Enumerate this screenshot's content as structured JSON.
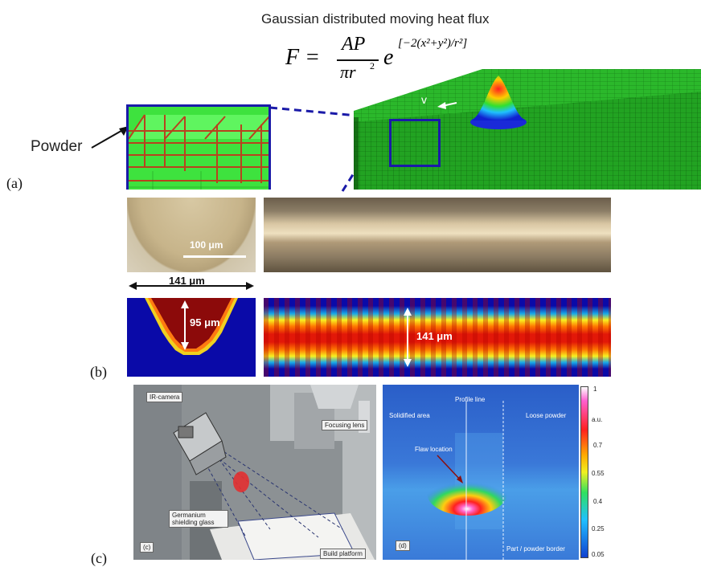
{
  "title": "Gaussian distributed moving heat flux",
  "formula": {
    "lhs": "F =",
    "numerator": "AP",
    "denominator": "πr",
    "exponent": "[−2(x²+y²)/r²]"
  },
  "panel_a": {
    "label": "(a)",
    "powder_label": "Powder",
    "velocity_label": "v"
  },
  "panel_b": {
    "label": "(b)",
    "scale_bar": "100 μm",
    "width_label": "141 μm",
    "depth_label": "95 μm",
    "track_width_label": "141 μm"
  },
  "panel_c": {
    "label": "(c)",
    "inner_label": "(c)",
    "ir_camera": "IR-camera",
    "focusing_lens": "Focusing lens",
    "germanium": "Germanium shielding glass",
    "build_platform": "Build platform"
  },
  "panel_d": {
    "inner_label": "(d)",
    "solidified_area": "Solidified area",
    "profile_line": "Profile line",
    "loose_powder": "Loose powder",
    "flaw_location": "Flaw location",
    "part_powder_border": "Part / powder border",
    "colorbar_unit": "a.u.",
    "colorbar_ticks": [
      "1",
      "0.7",
      "0.55",
      "0.4",
      "0.25",
      "0.05"
    ]
  }
}
